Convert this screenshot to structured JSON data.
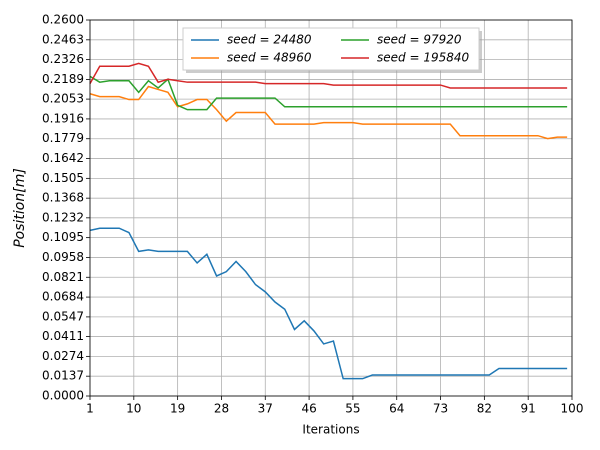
{
  "chart_data": {
    "type": "line",
    "x_label": "Iterations",
    "y_label": "Position[m]",
    "x": [
      1,
      3,
      5,
      7,
      9,
      11,
      13,
      15,
      17,
      19,
      21,
      23,
      25,
      27,
      29,
      31,
      33,
      35,
      37,
      39,
      41,
      43,
      45,
      47,
      49,
      51,
      53,
      55,
      57,
      59,
      61,
      63,
      65,
      67,
      69,
      71,
      73,
      75,
      77,
      79,
      81,
      83,
      85,
      87,
      89,
      91,
      93,
      95,
      97,
      99
    ],
    "series": [
      {
        "name": "seed = 24480",
        "color": "#1f77b4",
        "values": [
          0.1145,
          0.116,
          0.116,
          0.116,
          0.113,
          0.1,
          0.101,
          0.1,
          0.1,
          0.1,
          0.1,
          0.092,
          0.098,
          0.083,
          0.086,
          0.093,
          0.086,
          0.077,
          0.072,
          0.065,
          0.06,
          0.046,
          0.052,
          0.045,
          0.036,
          0.038,
          0.012,
          0.012,
          0.012,
          0.0145,
          0.0145,
          0.0145,
          0.0145,
          0.0145,
          0.0145,
          0.0145,
          0.0145,
          0.0145,
          0.0145,
          0.0145,
          0.0145,
          0.0145,
          0.019,
          0.019,
          0.019,
          0.019,
          0.019,
          0.019,
          0.019,
          0.019
        ]
      },
      {
        "name": "seed = 48960",
        "color": "#ff7f0e",
        "values": [
          0.209,
          0.207,
          0.207,
          0.207,
          0.205,
          0.205,
          0.214,
          0.212,
          0.21,
          0.2,
          0.202,
          0.205,
          0.205,
          0.198,
          0.19,
          0.196,
          0.196,
          0.196,
          0.196,
          0.188,
          0.188,
          0.188,
          0.188,
          0.188,
          0.189,
          0.189,
          0.189,
          0.189,
          0.188,
          0.188,
          0.188,
          0.188,
          0.188,
          0.188,
          0.188,
          0.188,
          0.188,
          0.188,
          0.18,
          0.18,
          0.18,
          0.18,
          0.18,
          0.18,
          0.18,
          0.18,
          0.18,
          0.178,
          0.179,
          0.179
        ]
      },
      {
        "name": "seed = 97920",
        "color": "#2ca02c",
        "values": [
          0.221,
          0.217,
          0.218,
          0.218,
          0.218,
          0.21,
          0.218,
          0.213,
          0.219,
          0.201,
          0.198,
          0.198,
          0.198,
          0.206,
          0.206,
          0.206,
          0.206,
          0.206,
          0.206,
          0.206,
          0.2,
          0.2,
          0.2,
          0.2,
          0.2,
          0.2,
          0.2,
          0.2,
          0.2,
          0.2,
          0.2,
          0.2,
          0.2,
          0.2,
          0.2,
          0.2,
          0.2,
          0.2,
          0.2,
          0.2,
          0.2,
          0.2,
          0.2,
          0.2,
          0.2,
          0.2,
          0.2,
          0.2,
          0.2,
          0.2
        ]
      },
      {
        "name": "seed = 195840",
        "color": "#d62728",
        "values": [
          0.216,
          0.228,
          0.228,
          0.228,
          0.228,
          0.23,
          0.228,
          0.217,
          0.219,
          0.218,
          0.217,
          0.217,
          0.217,
          0.217,
          0.217,
          0.217,
          0.217,
          0.217,
          0.216,
          0.216,
          0.216,
          0.216,
          0.216,
          0.216,
          0.216,
          0.215,
          0.215,
          0.215,
          0.215,
          0.215,
          0.215,
          0.215,
          0.215,
          0.215,
          0.215,
          0.215,
          0.215,
          0.213,
          0.213,
          0.213,
          0.213,
          0.213,
          0.213,
          0.213,
          0.213,
          0.213,
          0.213,
          0.213,
          0.213,
          0.213
        ]
      }
    ],
    "xlim": [
      1,
      100
    ],
    "xticks": [
      1,
      10,
      19,
      28,
      37,
      46,
      55,
      64,
      73,
      82,
      91,
      100
    ],
    "ylim": [
      0,
      0.26
    ],
    "yticks": [
      {
        "value": 0,
        "label": "0.0000"
      },
      {
        "value": 0.0137,
        "label": "0.0137"
      },
      {
        "value": 0.0274,
        "label": "0.0274"
      },
      {
        "value": 0.0411,
        "label": "0.0411"
      },
      {
        "value": 0.0547,
        "label": "0.0547"
      },
      {
        "value": 0.0684,
        "label": "0.0684"
      },
      {
        "value": 0.0821,
        "label": "0.0821"
      },
      {
        "value": 0.0958,
        "label": "0.0958"
      },
      {
        "value": 0.1095,
        "label": "0.1095"
      },
      {
        "value": 0.1232,
        "label": "0.1232"
      },
      {
        "value": 0.1368,
        "label": "0.1368"
      },
      {
        "value": 0.1505,
        "label": "0.1505"
      },
      {
        "value": 0.1642,
        "label": "0.1642"
      },
      {
        "value": 0.1779,
        "label": "0.1779"
      },
      {
        "value": 0.1916,
        "label": "0.1916"
      },
      {
        "value": 0.2053,
        "label": "0.2053"
      },
      {
        "value": 0.2189,
        "label": "0.2189"
      },
      {
        "value": 0.2326,
        "label": "0.2326"
      },
      {
        "value": 0.2463,
        "label": "0.2463"
      },
      {
        "value": 0.26,
        "label": "0.2600"
      }
    ],
    "grid": true,
    "legend": "upper center"
  }
}
